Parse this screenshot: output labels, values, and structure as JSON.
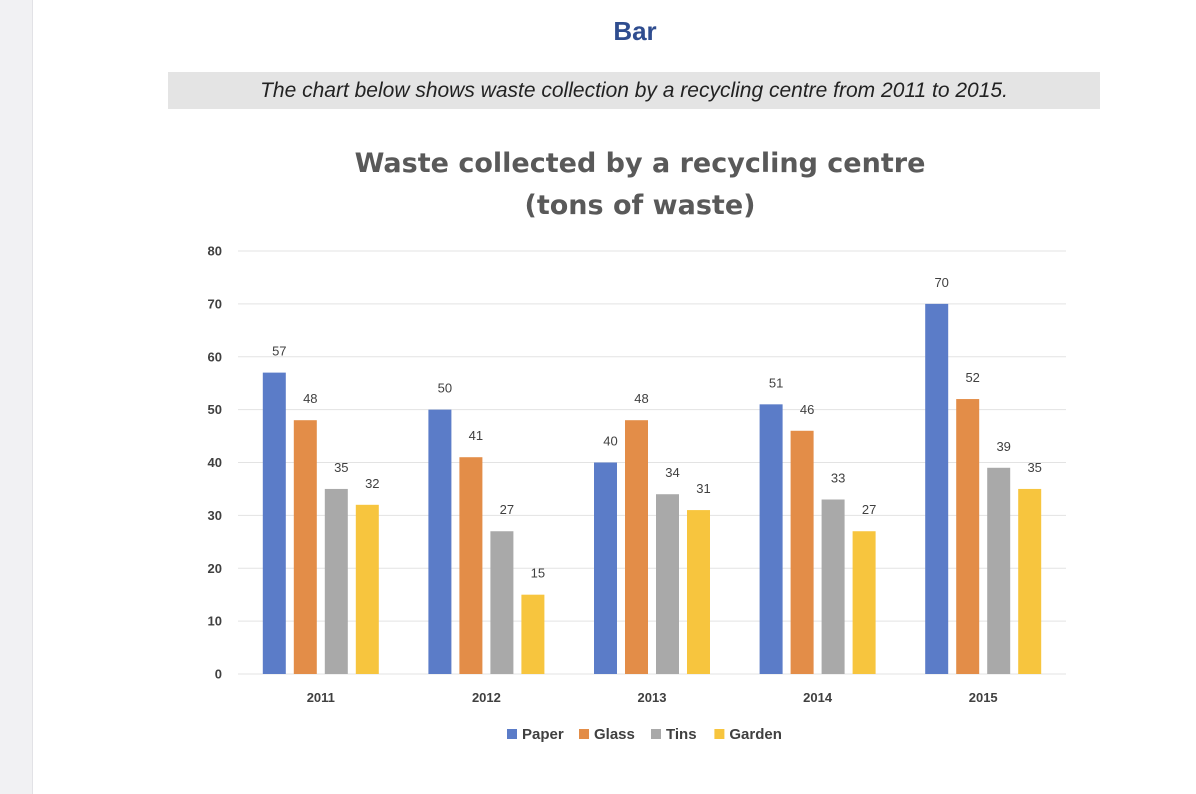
{
  "page": {
    "heading": "Bar",
    "caption": "The chart below shows waste collection by a recycling centre from 2011 to 2015."
  },
  "chart_data": {
    "type": "bar",
    "title": "Waste collected by a recycling centre",
    "subtitle": "(tons of waste)",
    "categories": [
      "2011",
      "2012",
      "2013",
      "2014",
      "2015"
    ],
    "series": [
      {
        "name": "Paper",
        "color": "#5b7cc8",
        "values": [
          57,
          50,
          40,
          51,
          70
        ]
      },
      {
        "name": "Glass",
        "color": "#e38d48",
        "values": [
          48,
          41,
          48,
          46,
          52
        ]
      },
      {
        "name": "Tins",
        "color": "#a9a9a9",
        "values": [
          35,
          27,
          34,
          33,
          39
        ]
      },
      {
        "name": "Garden",
        "color": "#f7c53e",
        "values": [
          32,
          15,
          31,
          27,
          35
        ]
      }
    ],
    "ylim": [
      0,
      80
    ],
    "yticks": [
      0,
      10,
      20,
      30,
      40,
      50,
      60,
      70,
      80
    ],
    "grid": true,
    "legend": "bottom",
    "xlabel": "",
    "ylabel": ""
  }
}
